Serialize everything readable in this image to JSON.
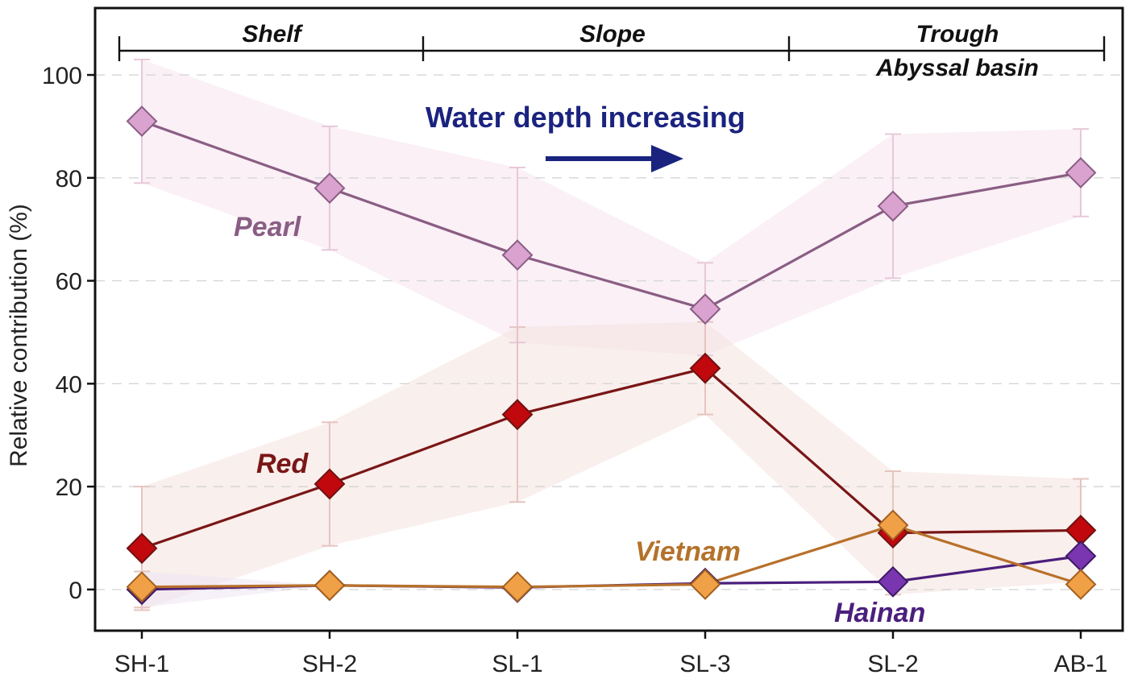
{
  "chart_data": {
    "type": "line",
    "title": "",
    "xlabel": "",
    "ylabel": "Relative contribution (%)",
    "categories": [
      "SH-1",
      "SH-2",
      "SL-1",
      "SL-3",
      "SL-2",
      "AB-1"
    ],
    "ylim": [
      -8,
      113
    ],
    "yticks": [
      0,
      20,
      40,
      60,
      80,
      100
    ],
    "grid": "horizontal-dashed",
    "zones": [
      {
        "label": "Shelf",
        "from": 0,
        "to": 1.5
      },
      {
        "label": "Slope",
        "from": 1.5,
        "to": 3.45
      },
      {
        "label": "Trough",
        "label2": "Abyssal basin",
        "from": 3.45,
        "to": 5.1
      }
    ],
    "annotation": {
      "text": "Water depth increasing",
      "direction": "right",
      "color": "#1a237e"
    },
    "series": [
      {
        "name": "Pearl",
        "values": [
          91,
          78,
          65,
          54.5,
          74.5,
          81
        ],
        "error": [
          12,
          12,
          17,
          9,
          14,
          8.5
        ],
        "line_color": "#8a5d84",
        "marker_fill": "#d9a2cf",
        "marker_stroke": "#8a5d84",
        "label_color": "#8a5d84"
      },
      {
        "name": "Red",
        "values": [
          8,
          20.5,
          34,
          43,
          11,
          11.5
        ],
        "error": [
          12,
          12,
          17,
          9,
          12,
          10
        ],
        "line_color": "#7a1616",
        "marker_fill": "#c0080d",
        "marker_stroke": "#6e1212",
        "label_color": "#7a1616"
      },
      {
        "name": "Hainan",
        "values": [
          0,
          0.8,
          0.4,
          1.2,
          1.5,
          6.5
        ],
        "error": [
          3.5,
          0,
          0,
          0,
          0,
          0
        ],
        "line_color": "#4b1f7c",
        "marker_fill": "#7a35b0",
        "marker_stroke": "#3e1a66",
        "label_color": "#4b1f7c"
      },
      {
        "name": "Vietnam",
        "values": [
          0.5,
          0.8,
          0.5,
          1,
          12.5,
          1
        ],
        "error": [
          0,
          0,
          0,
          0,
          0,
          0
        ],
        "line_color": "#b8702a",
        "marker_fill": "#f0a046",
        "marker_stroke": "#a2601e",
        "label_color": "#b4722a"
      }
    ]
  }
}
